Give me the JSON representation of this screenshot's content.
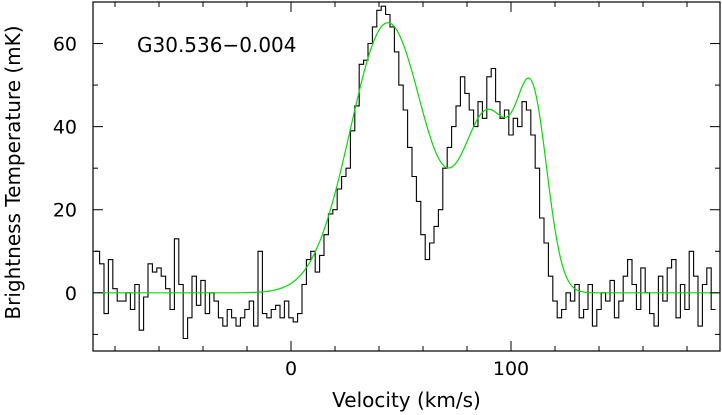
{
  "chart_data": {
    "type": "line",
    "title": "",
    "annotation": "G30.536−0.004",
    "xlabel": "Velocity (km/s)",
    "ylabel": "Brightness Temperature (mK)",
    "xlim": [
      -90,
      195
    ],
    "ylim": [
      -14,
      70
    ],
    "xticks_major": [
      0,
      100
    ],
    "xtick_labels": [
      "0",
      "100"
    ],
    "yticks_major": [
      0,
      20,
      40,
      60
    ],
    "ytick_labels": [
      "0",
      "20",
      "40",
      "60"
    ],
    "grid": false,
    "series": [
      {
        "style": "histogram",
        "color": "#000000",
        "x": [
          -88,
          -86,
          -84,
          -82,
          -80,
          -78,
          -76,
          -74,
          -72,
          -70,
          -68,
          -66,
          -64,
          -62,
          -60,
          -58,
          -56,
          -54,
          -52,
          -50,
          -48,
          -46,
          -44,
          -42,
          -40,
          -38,
          -36,
          -34,
          -32,
          -30,
          -28,
          -26,
          -24,
          -22,
          -20,
          -18,
          -16,
          -14,
          -12,
          -10,
          -8,
          -6,
          -4,
          -2,
          0,
          2,
          4,
          6,
          8,
          10,
          12,
          14,
          16,
          18,
          20,
          22,
          24,
          26,
          28,
          30,
          32,
          34,
          36,
          38,
          40,
          42,
          44,
          46,
          48,
          50,
          52,
          54,
          56,
          58,
          60,
          62,
          64,
          66,
          68,
          70,
          72,
          74,
          76,
          78,
          80,
          82,
          84,
          86,
          88,
          90,
          92,
          94,
          96,
          98,
          100,
          102,
          104,
          106,
          108,
          110,
          112,
          114,
          116,
          118,
          120,
          122,
          124,
          126,
          128,
          130,
          132,
          134,
          136,
          138,
          140,
          142,
          144,
          146,
          148,
          150,
          152,
          154,
          156,
          158,
          160,
          162,
          164,
          166,
          168,
          170,
          172,
          174,
          176,
          178,
          180,
          182,
          184,
          186,
          188,
          190,
          192
        ],
        "values": [
          10,
          7,
          -5,
          8,
          1,
          -2,
          -2,
          0,
          -4,
          2,
          -9,
          -1,
          7,
          5,
          6,
          4,
          1,
          -4,
          13,
          2,
          -11,
          -6,
          4,
          -3,
          3,
          -5,
          0,
          -2,
          -6,
          -8,
          -4,
          -6,
          -8,
          -6,
          -4,
          -2,
          -8,
          10,
          -5,
          -6,
          -4,
          -3,
          -6,
          -2,
          -6,
          -7,
          -5,
          2,
          8,
          10,
          5,
          9,
          14,
          19,
          20,
          25,
          28,
          30,
          39,
          45,
          55,
          56,
          60,
          64,
          68,
          69,
          67,
          64,
          58,
          50,
          44,
          35,
          28,
          22,
          14,
          8,
          12,
          16,
          20,
          30,
          35,
          40,
          45,
          52,
          48,
          44,
          40,
          46,
          42,
          52,
          54,
          46,
          42,
          44,
          38,
          42,
          40,
          46,
          44,
          38,
          30,
          18,
          12,
          4,
          -2,
          -6,
          -4,
          0,
          -2,
          2,
          -6,
          -4,
          2,
          -8,
          -4,
          0,
          -2,
          3,
          -6,
          -2,
          4,
          8,
          2,
          -4,
          6,
          0,
          -5,
          -8,
          4,
          -2,
          6,
          8,
          -6,
          2,
          -4,
          10,
          4,
          -8,
          2,
          6,
          -4
        ]
      },
      {
        "style": "gaussian-fit",
        "color": "#00dd00",
        "components": [
          {
            "amplitude": 65,
            "center": 44,
            "fwhm": 40
          },
          {
            "amplitude": 42,
            "center": 90,
            "fwhm": 28
          },
          {
            "amplitude": 40,
            "center": 110,
            "fwhm": 16
          }
        ]
      }
    ]
  }
}
